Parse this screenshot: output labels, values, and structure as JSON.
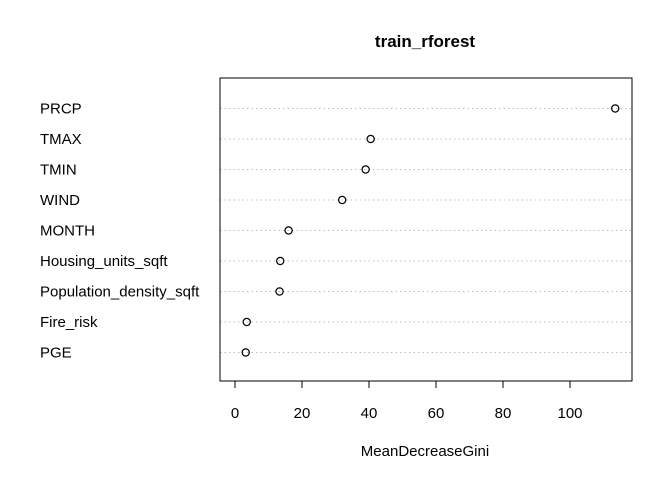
{
  "chart_data": {
    "type": "scatter",
    "subtype": "dotchart",
    "title": "train_rforest",
    "xlabel": "MeanDecreaseGini",
    "ylabel": "",
    "xlim": [
      -4,
      118
    ],
    "xticks": [
      0,
      20,
      40,
      60,
      80,
      100
    ],
    "grid": "dotted horizontal guides",
    "categories": [
      "PRCP",
      "TMAX",
      "TMIN",
      "WIND",
      "MONTH",
      "Housing_units_sqft",
      "Population_density_sqft",
      "Fire_risk",
      "PGE"
    ],
    "values": [
      113.5,
      40.5,
      39.0,
      32.0,
      16.0,
      13.5,
      13.3,
      3.5,
      3.2
    ],
    "colors": {
      "axis": "#000000",
      "grid": "#bdbdbd",
      "marker": "#000000"
    }
  }
}
